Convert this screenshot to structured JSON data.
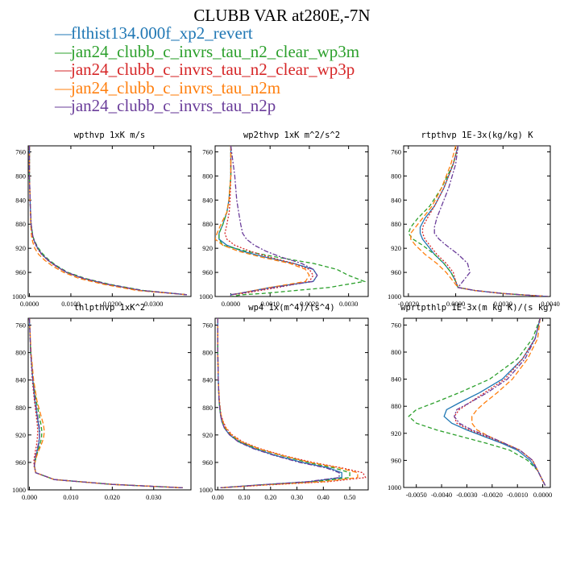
{
  "page_title": "CLUBB VAR at280E,-7N",
  "legend": [
    {
      "label": "flthist134.000f_xp2_revert",
      "color": "#1f77b4"
    },
    {
      "label": "jan24_clubb_c_invrs_tau_n2_clear_wp3m",
      "color": "#2ca02c"
    },
    {
      "label": "jan24_clubb_c_invrs_tau_n2_clear_wp3p",
      "color": "#d62728"
    },
    {
      "label": "jan24_clubb_c_invrs_tau_n2m",
      "color": "#ff7f0e"
    },
    {
      "label": "jan24_clubb_c_invrs_tau_n2p",
      "color": "#6a3d9a"
    }
  ],
  "chart_data": [
    {
      "type": "line",
      "title": "wpthvp  1xK m/s",
      "ylim": [
        1000,
        750
      ],
      "xlim": [
        -0.0003,
        0.039
      ],
      "yticks": [
        760,
        800,
        840,
        880,
        920,
        960,
        1000
      ],
      "xticks": [
        0.0,
        0.01,
        0.02,
        0.03
      ],
      "xtick_labels": [
        "0.0000",
        "0.0100",
        "0.0200",
        "0.0300"
      ],
      "y": [
        750,
        800,
        850,
        880,
        900,
        910,
        920,
        930,
        940,
        950,
        960,
        970,
        980,
        990,
        997
      ],
      "series": [
        {
          "x": [
            0.0,
            0.0,
            0.0002,
            0.0004,
            0.0008,
            0.0013,
            0.002,
            0.003,
            0.0045,
            0.0065,
            0.009,
            0.013,
            0.019,
            0.027,
            0.038
          ]
        },
        {
          "x": [
            0.0,
            0.0,
            0.0002,
            0.0004,
            0.0008,
            0.0014,
            0.0022,
            0.0033,
            0.0048,
            0.0068,
            0.0093,
            0.0135,
            0.0195,
            0.0275,
            0.038
          ]
        },
        {
          "x": [
            0.0,
            0.0,
            0.0002,
            0.0004,
            0.0007,
            0.0012,
            0.0019,
            0.0029,
            0.0044,
            0.0064,
            0.0089,
            0.0128,
            0.0188,
            0.0268,
            0.038
          ]
        },
        {
          "x": [
            0.0,
            0.0,
            0.0002,
            0.0003,
            0.0005,
            0.0008,
            0.0013,
            0.0022,
            0.0037,
            0.0057,
            0.0083,
            0.012,
            0.018,
            0.026,
            0.038
          ]
        },
        {
          "x": [
            0.0,
            0.0,
            0.0002,
            0.0004,
            0.0008,
            0.0013,
            0.002,
            0.003,
            0.0046,
            0.0066,
            0.0091,
            0.0132,
            0.0192,
            0.0272,
            0.038
          ]
        }
      ]
    },
    {
      "type": "line",
      "title": "wp2thvp  1xK m^2/s^2",
      "ylim": [
        1000,
        750
      ],
      "xlim": [
        -0.0004,
        0.0035
      ],
      "yticks": [
        760,
        800,
        840,
        880,
        920,
        960,
        1000
      ],
      "xticks": [
        0.0,
        0.001,
        0.002,
        0.003
      ],
      "xtick_labels": [
        "0.0000",
        "0.0010",
        "0.0020",
        "0.0030"
      ],
      "y": [
        750,
        800,
        840,
        860,
        880,
        895,
        905,
        915,
        925,
        935,
        945,
        955,
        965,
        975,
        985,
        995,
        997,
        1000
      ],
      "series": [
        {
          "x": [
            0.0,
            0.0,
            -5e-05,
            -0.0001,
            -0.0002,
            -0.0003,
            -0.0003,
            -0.0001,
            0.0003,
            0.0009,
            0.0016,
            0.0021,
            0.0022,
            0.0021,
            0.001,
            0.0002,
            0.0,
            0.0
          ]
        },
        {
          "x": [
            0.0,
            0.0,
            -5e-05,
            -0.0001,
            -0.0002,
            -0.0003,
            -0.0003,
            -0.0002,
            0.0004,
            0.0012,
            0.0021,
            0.0027,
            0.003,
            0.0034,
            0.0025,
            0.0008,
            0.0003,
            0.0
          ]
        },
        {
          "x": [
            0.0,
            0.0,
            -2e-05,
            -4e-05,
            -0.0001,
            -0.00015,
            -0.0001,
            0.0001,
            0.0005,
            0.001,
            0.0016,
            0.002,
            0.0021,
            0.002,
            0.0012,
            0.0003,
            0.0,
            0.0
          ]
        },
        {
          "x": [
            0.0,
            0.0,
            -5e-05,
            -0.0001,
            -0.00025,
            -0.00035,
            -0.0004,
            -0.0002,
            0.0002,
            0.0008,
            0.0015,
            0.0019,
            0.002,
            0.0019,
            0.001,
            0.0002,
            0.0,
            0.0
          ]
        },
        {
          "x": [
            0.0,
            0.0001,
            0.00015,
            0.0002,
            0.00025,
            0.0003,
            0.0004,
            0.0006,
            0.0009,
            0.0013,
            0.0018,
            0.0021,
            0.0022,
            0.0021,
            0.0011,
            0.0002,
            0.0,
            0.0
          ]
        }
      ]
    },
    {
      "type": "line",
      "title": "rtpthvp  1E-3x(kg/kg) K",
      "ylim": [
        1000,
        750
      ],
      "xlim": [
        -0.0022,
        0.004
      ],
      "yticks": [
        760,
        800,
        840,
        880,
        920,
        960,
        1000
      ],
      "xticks": [
        -0.002,
        0.0,
        0.002,
        0.004
      ],
      "xtick_labels": [
        "-0.0020",
        "0.0000",
        "0.0020",
        "0.0040"
      ],
      "y": [
        750,
        780,
        820,
        850,
        870,
        885,
        895,
        905,
        915,
        930,
        945,
        960,
        975,
        985,
        990,
        995,
        1000
      ],
      "series": [
        {
          "x": [
            0.0001,
            -0.0001,
            -0.0005,
            -0.0009,
            -0.0013,
            -0.0015,
            -0.0015,
            -0.0014,
            -0.0012,
            -0.0009,
            -0.0005,
            -0.0002,
            0.0,
            0.0001,
            0.0008,
            0.002,
            0.0039
          ]
        },
        {
          "x": [
            0.0001,
            -0.0001,
            -0.0006,
            -0.0011,
            -0.0016,
            -0.0019,
            -0.002,
            -0.0018,
            -0.0014,
            -0.0009,
            -0.0005,
            -0.0002,
            0.0,
            0.0001,
            0.0008,
            0.002,
            0.0039
          ]
        },
        {
          "x": [
            0.0001,
            -0.0001,
            -0.0005,
            -0.0009,
            -0.0012,
            -0.0014,
            -0.0014,
            -0.0013,
            -0.0011,
            -0.0008,
            -0.0004,
            -0.0001,
            0.0,
            0.0001,
            0.0008,
            0.002,
            0.0039
          ]
        },
        {
          "x": [
            0.0,
            -0.0002,
            -0.0006,
            -0.001,
            -0.0014,
            -0.0017,
            -0.0019,
            -0.0019,
            -0.0017,
            -0.0013,
            -0.0008,
            -0.0004,
            -0.0001,
            0.0001,
            0.0008,
            0.002,
            0.0039
          ]
        },
        {
          "x": [
            0.0001,
            0.0,
            -0.0003,
            -0.0006,
            -0.0008,
            -0.0009,
            -0.0009,
            -0.0007,
            -0.0004,
            0.0001,
            0.0005,
            0.0006,
            0.0003,
            0.0001,
            0.0008,
            0.002,
            0.0039
          ]
        }
      ]
    },
    {
      "type": "line",
      "title": "thlpthvp  1xK^2",
      "ylim": [
        1000,
        750
      ],
      "xlim": [
        -0.0003,
        0.039
      ],
      "yticks": [
        760,
        800,
        840,
        880,
        920,
        960,
        1000
      ],
      "xticks": [
        0.0,
        0.01,
        0.02,
        0.03
      ],
      "xtick_labels": [
        "0.000",
        "0.010",
        "0.020",
        "0.030"
      ],
      "y": [
        750,
        800,
        840,
        870,
        890,
        905,
        915,
        925,
        935,
        945,
        955,
        965,
        975,
        985,
        992,
        997
      ],
      "series": [
        {
          "x": [
            0.0,
            0.0003,
            0.0008,
            0.0013,
            0.0018,
            0.0022,
            0.0024,
            0.0024,
            0.0022,
            0.0018,
            0.0014,
            0.0012,
            0.0015,
            0.006,
            0.02,
            0.037
          ]
        },
        {
          "x": [
            0.0,
            0.0003,
            0.0009,
            0.0016,
            0.0023,
            0.0028,
            0.003,
            0.0029,
            0.0025,
            0.002,
            0.0015,
            0.0012,
            0.0015,
            0.006,
            0.02,
            0.037
          ]
        },
        {
          "x": [
            0.0,
            0.0003,
            0.0007,
            0.0012,
            0.0016,
            0.0019,
            0.002,
            0.0019,
            0.0017,
            0.0014,
            0.0011,
            0.0011,
            0.0015,
            0.006,
            0.02,
            0.037
          ]
        },
        {
          "x": [
            0.0,
            0.0004,
            0.001,
            0.0018,
            0.0027,
            0.0034,
            0.0036,
            0.0034,
            0.0028,
            0.0021,
            0.0015,
            0.0012,
            0.0015,
            0.006,
            0.02,
            0.037
          ]
        },
        {
          "x": [
            0.0,
            0.0003,
            0.0008,
            0.0014,
            0.0019,
            0.0023,
            0.0025,
            0.0024,
            0.0021,
            0.0017,
            0.0013,
            0.0012,
            0.0015,
            0.006,
            0.02,
            0.037
          ]
        }
      ]
    },
    {
      "type": "line",
      "title": "wp4  1x(m^4)/(s^4)",
      "ylim": [
        1000,
        750
      ],
      "xlim": [
        -0.01,
        0.57
      ],
      "yticks": [
        760,
        800,
        840,
        880,
        920,
        960,
        1000
      ],
      "xticks": [
        0.0,
        0.1,
        0.2,
        0.3,
        0.4,
        0.5
      ],
      "xtick_labels": [
        "0.00",
        "0.10",
        "0.20",
        "0.30",
        "0.40",
        "0.50"
      ],
      "y": [
        750,
        800,
        840,
        870,
        890,
        900,
        910,
        920,
        930,
        940,
        950,
        960,
        968,
        975,
        982,
        988,
        993,
        997
      ],
      "series": [
        {
          "x": [
            0.0,
            0.0,
            0.002,
            0.005,
            0.01,
            0.015,
            0.025,
            0.045,
            0.08,
            0.14,
            0.22,
            0.32,
            0.42,
            0.47,
            0.47,
            0.35,
            0.15,
            0.01
          ]
        },
        {
          "x": [
            0.0,
            0.0,
            0.002,
            0.005,
            0.01,
            0.016,
            0.027,
            0.048,
            0.085,
            0.15,
            0.24,
            0.34,
            0.44,
            0.5,
            0.5,
            0.37,
            0.16,
            0.01
          ]
        },
        {
          "x": [
            0.0,
            0.0,
            0.002,
            0.006,
            0.012,
            0.02,
            0.032,
            0.055,
            0.095,
            0.16,
            0.25,
            0.36,
            0.47,
            0.55,
            0.56,
            0.42,
            0.18,
            0.01
          ]
        },
        {
          "x": [
            0.0,
            0.0,
            0.002,
            0.006,
            0.012,
            0.019,
            0.03,
            0.052,
            0.09,
            0.155,
            0.245,
            0.35,
            0.46,
            0.53,
            0.53,
            0.4,
            0.17,
            0.01
          ]
        },
        {
          "x": [
            0.0,
            0.0,
            0.002,
            0.005,
            0.01,
            0.015,
            0.025,
            0.045,
            0.078,
            0.135,
            0.215,
            0.31,
            0.41,
            0.46,
            0.46,
            0.34,
            0.15,
            0.01
          ]
        }
      ]
    },
    {
      "type": "line",
      "title": "wprtpthlp  1E-3x(m kg K)/(s kg)",
      "ylim": [
        1000,
        750
      ],
      "xlim": [
        -0.0055,
        0.0003
      ],
      "yticks": [
        760,
        800,
        840,
        880,
        920,
        960,
        1000
      ],
      "xticks": [
        -0.005,
        -0.004,
        -0.003,
        -0.002,
        -0.001,
        0.0
      ],
      "xtick_labels": [
        "-0.0050",
        "-0.0040",
        "-0.0030",
        "-0.0020",
        "-0.0010",
        "0.0000"
      ],
      "y": [
        750,
        780,
        810,
        840,
        860,
        875,
        885,
        895,
        905,
        915,
        925,
        935,
        945,
        960,
        975,
        990,
        997
      ],
      "series": [
        {
          "x": [
            -0.0001,
            -0.0003,
            -0.0008,
            -0.0016,
            -0.0025,
            -0.0033,
            -0.0038,
            -0.0039,
            -0.0036,
            -0.003,
            -0.0023,
            -0.0016,
            -0.001,
            -0.0005,
            -0.0002,
            0.0,
            0.0001
          ]
        },
        {
          "x": [
            -0.0001,
            -0.0004,
            -0.001,
            -0.0021,
            -0.0033,
            -0.0043,
            -0.005,
            -0.0053,
            -0.005,
            -0.0042,
            -0.0032,
            -0.0022,
            -0.0013,
            -0.0006,
            -0.0002,
            0.0,
            0.0001
          ]
        },
        {
          "x": [
            -0.0001,
            -0.0003,
            -0.0008,
            -0.0015,
            -0.0023,
            -0.0029,
            -0.0033,
            -0.0035,
            -0.0034,
            -0.0029,
            -0.0022,
            -0.0015,
            -0.0009,
            -0.0004,
            -0.0002,
            0.0,
            0.0001
          ]
        },
        {
          "x": [
            -0.0001,
            -0.0002,
            -0.0006,
            -0.0012,
            -0.0018,
            -0.0023,
            -0.0026,
            -0.0028,
            -0.0028,
            -0.0026,
            -0.0021,
            -0.0015,
            -0.0009,
            -0.0004,
            -0.0002,
            0.0,
            0.0001
          ]
        },
        {
          "x": [
            -0.0001,
            -0.0003,
            -0.0007,
            -0.0014,
            -0.0022,
            -0.0029,
            -0.0034,
            -0.0035,
            -0.0033,
            -0.0028,
            -0.0021,
            -0.0015,
            -0.0009,
            -0.0004,
            -0.0002,
            0.0,
            0.0001
          ]
        }
      ]
    }
  ]
}
